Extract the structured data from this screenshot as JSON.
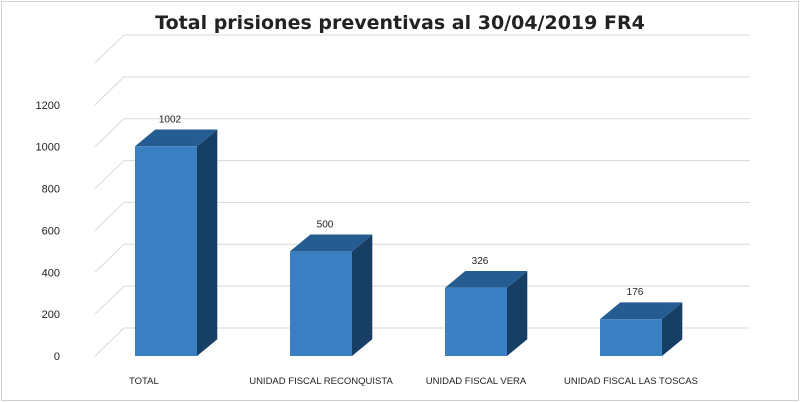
{
  "chart_data": {
    "type": "bar",
    "title": "Total prisiones preventivas al 30/04/2019 FR4",
    "categories": [
      "TOTAL",
      "UNIDAD FISCAL RECONQUISTA",
      "UNIDAD FISCAL VERA",
      "UNIDAD FISCAL LAS TOSCAS"
    ],
    "values": [
      1002,
      500,
      326,
      176
    ],
    "data_labels": [
      "1002",
      "500",
      "326",
      "176"
    ],
    "yticks": [
      0,
      200,
      400,
      600,
      800,
      1000,
      1200
    ],
    "ylim": [
      0,
      1400
    ],
    "xlabel": "",
    "ylabel": "",
    "grid": true,
    "legend": "none",
    "style": "3d-column",
    "colors": {
      "bar_front": "#3a7fc1",
      "bar_top": "#255d93",
      "bar_side": "#173f66",
      "grid": "#d9d9d9"
    }
  }
}
